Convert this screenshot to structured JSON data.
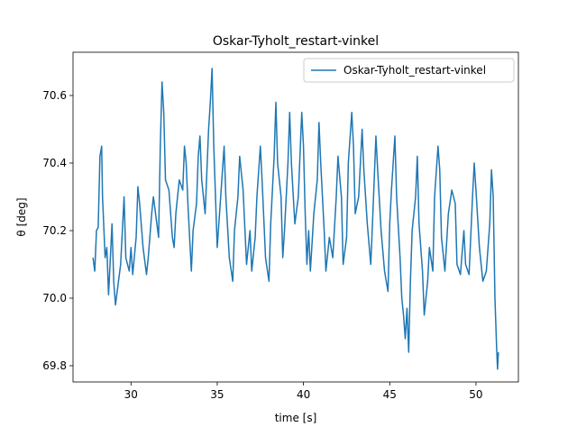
{
  "chart_data": {
    "type": "line",
    "title": "Oskar-Tyholt_restart-vinkel",
    "xlabel": "time [s]",
    "ylabel": "θ [deg]",
    "x": [
      27.8,
      27.9,
      28.0,
      28.1,
      28.2,
      28.3,
      28.35,
      28.5,
      28.6,
      28.7,
      28.9,
      29.0,
      29.1,
      29.2,
      29.4,
      29.5,
      29.6,
      29.7,
      29.9,
      30.0,
      30.1,
      30.3,
      30.4,
      30.5,
      30.7,
      30.9,
      31.0,
      31.2,
      31.3,
      31.5,
      31.6,
      31.7,
      31.8,
      31.9,
      32.0,
      32.2,
      32.4,
      32.5,
      32.6,
      32.8,
      33.0,
      33.1,
      33.2,
      33.3,
      33.5,
      33.6,
      33.8,
      33.9,
      34.0,
      34.1,
      34.3,
      34.5,
      34.6,
      34.7,
      34.8,
      34.9,
      35.0,
      35.2,
      35.4,
      35.5,
      35.7,
      35.9,
      36.0,
      36.2,
      36.3,
      36.5,
      36.7,
      36.9,
      37.0,
      37.2,
      37.3,
      37.5,
      37.6,
      37.8,
      38.0,
      38.1,
      38.3,
      38.4,
      38.5,
      38.7,
      38.8,
      38.9,
      39.1,
      39.2,
      39.3,
      39.5,
      39.7,
      39.9,
      40.0,
      40.1,
      40.2,
      40.3,
      40.4,
      40.6,
      40.8,
      40.9,
      41.0,
      41.2,
      41.3,
      41.5,
      41.7,
      41.9,
      42.0,
      42.2,
      42.3,
      42.5,
      42.6,
      42.8,
      42.9,
      43.0,
      43.2,
      43.4,
      43.5,
      43.7,
      43.9,
      44.0,
      44.2,
      44.3,
      44.5,
      44.7,
      44.9,
      45.0,
      45.1,
      45.3,
      45.4,
      45.6,
      45.7,
      45.8,
      45.9,
      46.0,
      46.1,
      46.2,
      46.3,
      46.5,
      46.6,
      46.7,
      46.9,
      47.0,
      47.2,
      47.3,
      47.5,
      47.6,
      47.8,
      47.9,
      48.0,
      48.2,
      48.4,
      48.6,
      48.8,
      48.9,
      49.1,
      49.3,
      49.4,
      49.6,
      49.8,
      49.9,
      50.0,
      50.2,
      50.3,
      50.4,
      50.6,
      50.8,
      50.9,
      51.0,
      51.1,
      51.2,
      51.25,
      51.3
    ],
    "series": [
      {
        "name": "Oskar-Tyholt_restart-vinkel",
        "color": "#1f77b4",
        "values": [
          70.12,
          70.08,
          70.2,
          70.21,
          70.42,
          70.45,
          70.3,
          70.12,
          70.15,
          70.01,
          70.22,
          70.05,
          69.98,
          70.02,
          70.1,
          70.2,
          70.3,
          70.12,
          70.08,
          70.15,
          70.07,
          70.18,
          70.33,
          70.28,
          70.15,
          70.07,
          70.12,
          70.25,
          70.3,
          70.22,
          70.18,
          70.45,
          70.64,
          70.55,
          70.35,
          70.32,
          70.18,
          70.15,
          70.25,
          70.35,
          70.32,
          70.45,
          70.4,
          70.28,
          70.08,
          70.2,
          70.28,
          70.42,
          70.48,
          70.35,
          70.25,
          70.5,
          70.58,
          70.68,
          70.45,
          70.3,
          70.15,
          70.3,
          70.45,
          70.3,
          70.12,
          70.05,
          70.2,
          70.3,
          70.42,
          70.32,
          70.1,
          70.2,
          70.08,
          70.18,
          70.3,
          70.45,
          70.35,
          70.12,
          70.05,
          70.22,
          70.42,
          70.58,
          70.4,
          70.3,
          70.12,
          70.2,
          70.4,
          70.55,
          70.4,
          70.22,
          70.3,
          70.55,
          70.45,
          70.25,
          70.1,
          70.2,
          70.08,
          70.25,
          70.35,
          70.52,
          70.4,
          70.2,
          70.08,
          70.18,
          70.12,
          70.3,
          70.42,
          70.3,
          70.1,
          70.18,
          70.4,
          70.55,
          70.45,
          70.25,
          70.3,
          70.5,
          70.38,
          70.22,
          70.1,
          70.22,
          70.48,
          70.38,
          70.2,
          70.08,
          70.02,
          70.22,
          70.32,
          70.48,
          70.3,
          70.12,
          70.0,
          69.95,
          69.88,
          69.97,
          69.84,
          70.05,
          70.2,
          70.3,
          70.42,
          70.22,
          70.08,
          69.95,
          70.05,
          70.15,
          70.08,
          70.3,
          70.45,
          70.38,
          70.18,
          70.08,
          70.25,
          70.32,
          70.28,
          70.1,
          70.07,
          70.2,
          70.1,
          70.07,
          70.3,
          70.4,
          70.32,
          70.15,
          70.1,
          70.05,
          70.08,
          70.22,
          70.38,
          70.3,
          70.0,
          69.85,
          69.79,
          69.84
        ]
      }
    ],
    "xlim": [
      26.64,
      52.46
    ],
    "ylim": [
      69.752,
      70.728
    ],
    "xticks": [
      30,
      35,
      40,
      45,
      50
    ],
    "yticks": [
      {
        "value": 69.8,
        "label": "69.8"
      },
      {
        "value": 70.0,
        "label": "70.0"
      },
      {
        "value": 70.2,
        "label": "70.2"
      },
      {
        "value": 70.4,
        "label": "70.4"
      },
      {
        "value": 70.6,
        "label": "70.6"
      }
    ],
    "legend": "upper right"
  }
}
